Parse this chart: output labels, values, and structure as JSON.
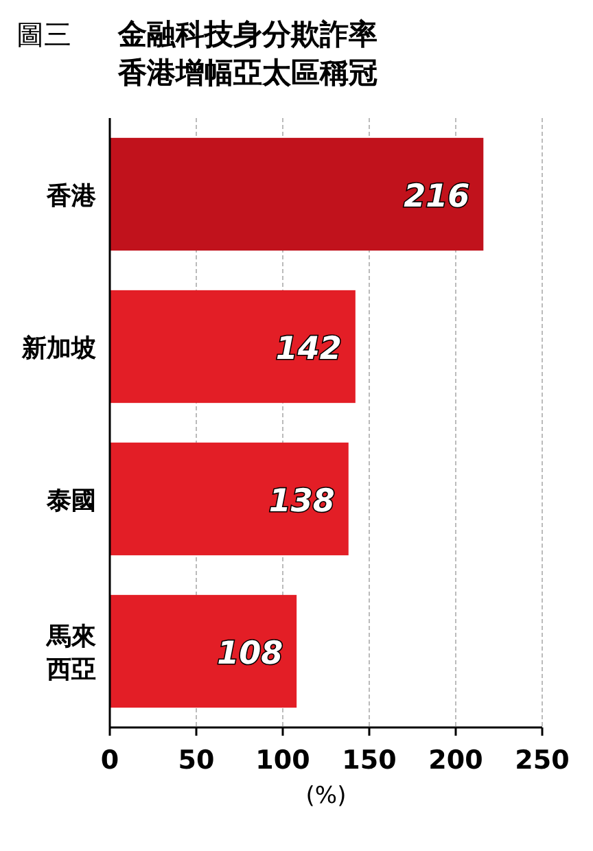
{
  "chart_data": {
    "type": "bar",
    "orientation": "horizontal",
    "title": "金融科技身分欺詐率香港增幅亞太區稱冠",
    "annotations": [
      "圖三"
    ],
    "categories": [
      "香港",
      "新加坡",
      "泰國",
      "馬來西亞"
    ],
    "values": [
      216,
      142,
      138,
      108
    ],
    "colors": [
      "#c1121c",
      "#e31e26",
      "#e31e26",
      "#e31e26"
    ],
    "xlim": [
      0,
      250
    ],
    "xticks": [
      0,
      50,
      100,
      150,
      200,
      250
    ],
    "xlabel": "(%)",
    "grid": "x",
    "data_labels": true
  }
}
